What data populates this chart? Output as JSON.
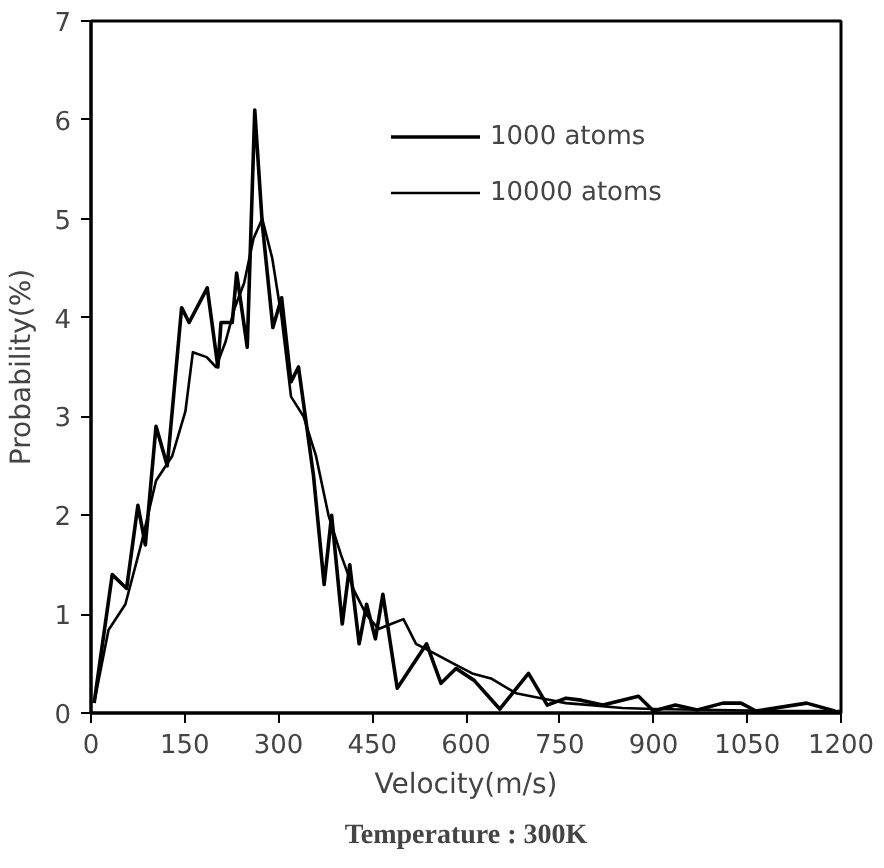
{
  "chart_data": {
    "type": "line",
    "xlabel": "Velocity(m/s)",
    "ylabel": "Probability(%)",
    "annotations": [
      "Temperature : 300K"
    ],
    "xlim": [
      0,
      1200
    ],
    "ylim": [
      0,
      7
    ],
    "xticks": [
      0,
      150,
      300,
      450,
      600,
      750,
      900,
      1050,
      1200
    ],
    "yticks": [
      0,
      1,
      2,
      3,
      4,
      5,
      6,
      7
    ],
    "legend": "top right",
    "series": [
      {
        "name": "1000 atoms",
        "color": "#000000",
        "x": [
          5,
          34,
          57,
          75,
          87,
          104,
          122,
          145,
          157,
          186,
          203,
          208,
          226,
          233,
          250,
          262,
          274,
          291,
          305,
          320,
          332,
          356,
          373,
          385,
          402,
          414,
          429,
          441,
          455,
          467,
          490,
          537,
          560,
          584,
          613,
          654,
          700,
          730,
          760,
          784,
          819,
          876,
          900,
          935,
          970,
          1011,
          1040,
          1064,
          1145,
          1190
        ],
        "values": [
          0.1,
          1.4,
          1.26,
          2.1,
          1.7,
          2.9,
          2.5,
          4.1,
          3.95,
          4.3,
          3.5,
          3.95,
          3.95,
          4.45,
          3.7,
          6.1,
          4.95,
          3.9,
          4.2,
          3.35,
          3.5,
          2.4,
          1.3,
          2.0,
          0.9,
          1.5,
          0.7,
          1.1,
          0.75,
          1.2,
          0.25,
          0.7,
          0.3,
          0.45,
          0.33,
          0.04,
          0.4,
          0.08,
          0.15,
          0.13,
          0.08,
          0.17,
          0.02,
          0.08,
          0.03,
          0.1,
          0.1,
          0.02,
          0.1,
          0.02
        ]
      },
      {
        "name": "10000 atoms",
        "color": "#000000",
        "x": [
          5,
          28,
          55,
          80,
          104,
          130,
          151,
          163,
          185,
          200,
          215,
          230,
          245,
          260,
          274,
          290,
          305,
          320,
          340,
          360,
          380,
          400,
          420,
          440,
          460,
          480,
          500,
          520,
          550,
          580,
          610,
          640,
          680,
          720,
          760,
          800,
          850,
          900,
          1000,
          1100,
          1200
        ],
        "values": [
          0.1,
          0.84,
          1.1,
          1.7,
          2.35,
          2.6,
          3.05,
          3.65,
          3.6,
          3.5,
          3.75,
          4.1,
          4.35,
          4.8,
          5.0,
          4.6,
          4.0,
          3.2,
          3.0,
          2.6,
          2.0,
          1.6,
          1.25,
          1.0,
          0.85,
          0.9,
          0.95,
          0.7,
          0.6,
          0.5,
          0.4,
          0.35,
          0.2,
          0.15,
          0.1,
          0.08,
          0.05,
          0.04,
          0.03,
          0.02,
          0.02
        ]
      }
    ]
  }
}
